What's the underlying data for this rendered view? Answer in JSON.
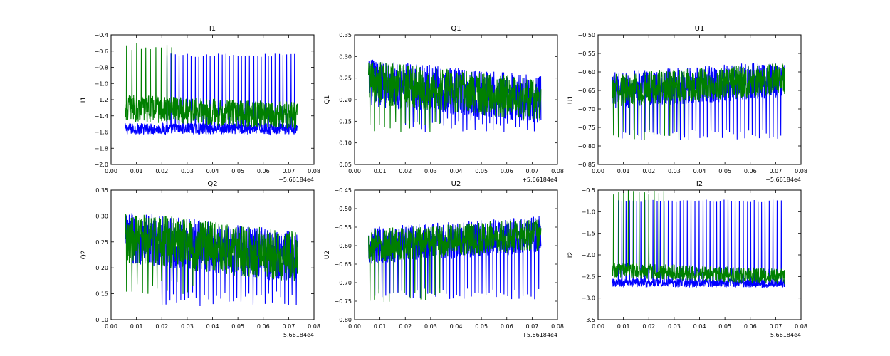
{
  "colors": {
    "series_blue": "#0000ff",
    "series_green": "#008000",
    "frame": "#000000",
    "background": "#ffffff"
  },
  "chart_data": [
    {
      "type": "line",
      "title": "I1",
      "xlabel": "",
      "ylabel": "I1",
      "xlim": [
        0.0,
        0.08
      ],
      "ylim": [
        -2.0,
        -0.4
      ],
      "xticks": [
        "0.00",
        "0.01",
        "0.02",
        "0.03",
        "0.04",
        "0.05",
        "0.06",
        "0.07",
        "0.08"
      ],
      "yticks": [
        "−2.0",
        "−1.8",
        "−1.6",
        "−1.4",
        "−1.2",
        "−1.0",
        "−0.8",
        "−0.6",
        "−0.4"
      ],
      "x_offset_label": "+5.66184e4",
      "grid": false,
      "series": [
        {
          "color": "#0000ff",
          "x_range": [
            0.0055,
            0.0735
          ],
          "base_range": [
            -1.56,
            -1.56
          ],
          "band": 0.07,
          "spike_level": -0.65,
          "spike_spacing": 0.0015,
          "spike_start": 0.022
        },
        {
          "color": "#008000",
          "x_range": [
            0.0055,
            0.0735
          ],
          "base_range": [
            -1.3,
            -1.4
          ],
          "band": 0.17,
          "spike_level": -0.55,
          "spike_spacing": 0.002,
          "spike_start": 0.006,
          "spike_end": 0.024
        }
      ]
    },
    {
      "type": "line",
      "title": "Q1",
      "xlabel": "",
      "ylabel": "Q1",
      "xlim": [
        0.0,
        0.08
      ],
      "ylim": [
        0.05,
        0.35
      ],
      "xticks": [
        "0.00",
        "0.01",
        "0.02",
        "0.03",
        "0.04",
        "0.05",
        "0.06",
        "0.07",
        "0.08"
      ],
      "yticks": [
        "0.05",
        "0.10",
        "0.15",
        "0.20",
        "0.25",
        "0.30",
        "0.35"
      ],
      "x_offset_label": "+5.66184e4",
      "grid": false,
      "series": [
        {
          "color": "#0000ff",
          "x_range": [
            0.0055,
            0.0735
          ],
          "base_range": [
            0.24,
            0.2
          ],
          "band": 0.055,
          "spike_level": 0.14,
          "spike_spacing": 0.0015,
          "spike_start": 0.02
        },
        {
          "color": "#008000",
          "x_range": [
            0.0055,
            0.0735
          ],
          "base_range": [
            0.24,
            0.2
          ],
          "band": 0.05,
          "spike_level": 0.14,
          "spike_spacing": 0.002,
          "spike_start": 0.006,
          "spike_end": 0.034
        }
      ]
    },
    {
      "type": "line",
      "title": "U1",
      "xlabel": "",
      "ylabel": "U1",
      "xlim": [
        0.0,
        0.08
      ],
      "ylim": [
        -0.85,
        -0.5
      ],
      "xticks": [
        "0.00",
        "0.01",
        "0.02",
        "0.03",
        "0.04",
        "0.05",
        "0.06",
        "0.07",
        "0.08"
      ],
      "yticks": [
        "−0.85",
        "−0.80",
        "−0.75",
        "−0.70",
        "−0.65",
        "−0.60",
        "−0.55",
        "−0.50"
      ],
      "x_offset_label": "+5.66184e4",
      "grid": false,
      "series": [
        {
          "color": "#0000ff",
          "x_range": [
            0.0055,
            0.0735
          ],
          "base_range": [
            -0.65,
            -0.62
          ],
          "band": 0.05,
          "spike_level": -0.77,
          "spike_spacing": 0.0015,
          "spike_start": 0.008
        },
        {
          "color": "#008000",
          "x_range": [
            0.0055,
            0.0735
          ],
          "base_range": [
            -0.65,
            -0.62
          ],
          "band": 0.045,
          "spike_level": -0.77,
          "spike_spacing": 0.002,
          "spike_start": 0.006,
          "spike_end": 0.034
        }
      ]
    },
    {
      "type": "line",
      "title": "Q2",
      "xlabel": "",
      "ylabel": "Q2",
      "xlim": [
        0.0,
        0.08
      ],
      "ylim": [
        0.1,
        0.35
      ],
      "xticks": [
        "0.00",
        "0.01",
        "0.02",
        "0.03",
        "0.04",
        "0.05",
        "0.06",
        "0.07",
        "0.08"
      ],
      "yticks": [
        "0.10",
        "0.15",
        "0.20",
        "0.25",
        "0.30",
        "0.35"
      ],
      "x_offset_label": "+5.66184e4",
      "grid": false,
      "series": [
        {
          "color": "#0000ff",
          "x_range": [
            0.0055,
            0.0735
          ],
          "base_range": [
            0.26,
            0.22
          ],
          "band": 0.05,
          "spike_level": 0.14,
          "spike_spacing": 0.0015,
          "spike_start": 0.02
        },
        {
          "color": "#008000",
          "x_range": [
            0.0055,
            0.0735
          ],
          "base_range": [
            0.26,
            0.22
          ],
          "band": 0.05,
          "spike_level": 0.16,
          "spike_spacing": 0.002,
          "spike_start": 0.006,
          "spike_end": 0.034
        }
      ]
    },
    {
      "type": "line",
      "title": "U2",
      "xlabel": "",
      "ylabel": "U2",
      "xlim": [
        0.0,
        0.08
      ],
      "ylim": [
        -0.8,
        -0.45
      ],
      "xticks": [
        "0.00",
        "0.01",
        "0.02",
        "0.03",
        "0.04",
        "0.05",
        "0.06",
        "0.07",
        "0.08"
      ],
      "yticks": [
        "−0.80",
        "−0.75",
        "−0.70",
        "−0.65",
        "−0.60",
        "−0.55",
        "−0.50",
        "−0.45"
      ],
      "x_offset_label": "+5.66184e4",
      "grid": false,
      "series": [
        {
          "color": "#0000ff",
          "x_range": [
            0.0055,
            0.0735
          ],
          "base_range": [
            -0.6,
            -0.57
          ],
          "band": 0.05,
          "spike_level": -0.73,
          "spike_spacing": 0.0015,
          "spike_start": 0.008
        },
        {
          "color": "#008000",
          "x_range": [
            0.0055,
            0.0735
          ],
          "base_range": [
            -0.6,
            -0.57
          ],
          "band": 0.045,
          "spike_level": -0.74,
          "spike_spacing": 0.002,
          "spike_start": 0.006,
          "spike_end": 0.034
        }
      ]
    },
    {
      "type": "line",
      "title": "I2",
      "xlabel": "",
      "ylabel": "I2",
      "xlim": [
        0.0,
        0.08
      ],
      "ylim": [
        -3.5,
        -0.5
      ],
      "xticks": [
        "0.00",
        "0.01",
        "0.02",
        "0.03",
        "0.04",
        "0.05",
        "0.06",
        "0.07",
        "0.08"
      ],
      "yticks": [
        "−3.5",
        "−3.0",
        "−2.5",
        "−2.0",
        "−1.5",
        "−1.0",
        "−0.5"
      ],
      "x_offset_label": "+5.66184e4",
      "grid": false,
      "series": [
        {
          "color": "#0000ff",
          "x_range": [
            0.0055,
            0.0735
          ],
          "base_range": [
            -2.65,
            -2.65
          ],
          "band": 0.1,
          "spike_level": -0.75,
          "spike_spacing": 0.0015,
          "spike_start": 0.008
        },
        {
          "color": "#008000",
          "x_range": [
            0.0055,
            0.0735
          ],
          "base_range": [
            -2.35,
            -2.5
          ],
          "band": 0.18,
          "spike_level": -0.55,
          "spike_spacing": 0.002,
          "spike_start": 0.006,
          "spike_end": 0.028
        }
      ]
    }
  ]
}
